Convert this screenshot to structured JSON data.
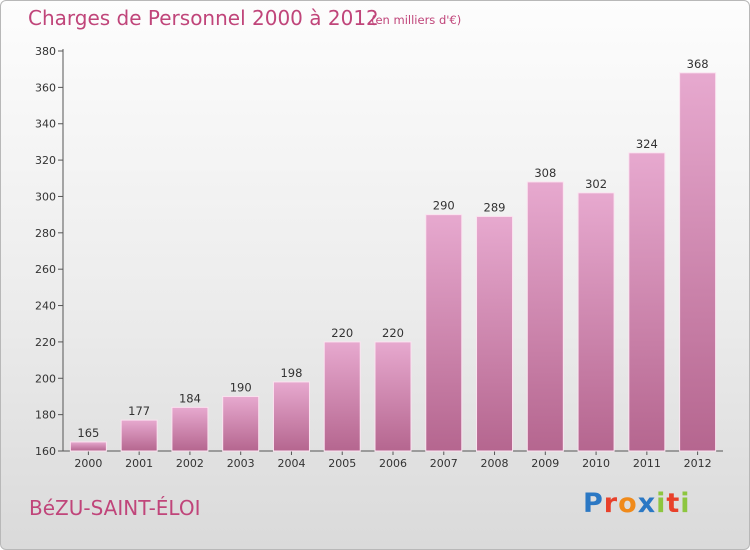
{
  "header": {
    "title": "Charges de Personnel 2000 à 2012",
    "subtitle": "(en milliers d'€)"
  },
  "footer": {
    "commune": "BéZU-SAINT-ÉLOI",
    "logo": {
      "text": "Proxiti",
      "letter_colors": [
        "#2b78c4",
        "#e8402a",
        "#f08a1a",
        "#2b78c4",
        "#8dc63f",
        "#e8402a",
        "#8dc63f"
      ]
    }
  },
  "colors": {
    "bar_top": "#e7a9cf",
    "bar_bottom": "#b5668f",
    "accent": "#c0457a"
  },
  "chart_data": {
    "type": "bar",
    "title": "Charges de Personnel 2000 à 2012",
    "subtitle": "(en milliers d'€)",
    "categories": [
      "2000",
      "2001",
      "2002",
      "2003",
      "2004",
      "2005",
      "2006",
      "2007",
      "2008",
      "2009",
      "2010",
      "2011",
      "2012"
    ],
    "values": [
      165,
      177,
      184,
      190,
      198,
      220,
      220,
      290,
      289,
      308,
      302,
      324,
      368
    ],
    "ylim": [
      160,
      380
    ],
    "yticks": [
      160,
      180,
      200,
      220,
      240,
      260,
      280,
      300,
      320,
      340,
      360,
      380
    ],
    "grid": false,
    "data_labels": true
  }
}
